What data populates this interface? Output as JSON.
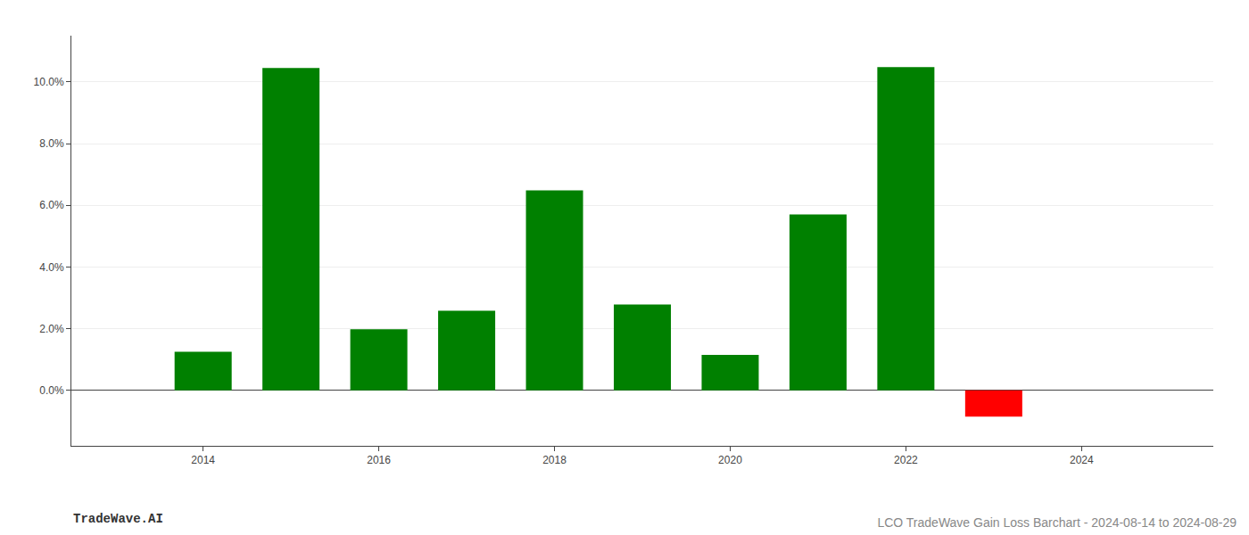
{
  "chart_data": {
    "type": "bar",
    "title": "LCO TradeWave Gain Loss Barchart - 2024-08-14 to 2024-08-29",
    "annotations": [
      "TradeWave.AI"
    ],
    "x": [
      2014,
      2015,
      2016,
      2017,
      2018,
      2019,
      2020,
      2021,
      2022,
      2023
    ],
    "values": [
      0.0125,
      0.1045,
      0.0198,
      0.0258,
      0.0648,
      0.0278,
      0.0115,
      0.057,
      0.1048,
      -0.0085
    ],
    "colors": [
      "#008000",
      "#008000",
      "#008000",
      "#008000",
      "#008000",
      "#008000",
      "#008000",
      "#008000",
      "#008000",
      "#ff0000"
    ],
    "xlim": [
      2012.5,
      2025.5
    ],
    "xticks": [
      2014,
      2016,
      2018,
      2020,
      2022,
      2024
    ],
    "ylim": [
      -0.018,
      0.115
    ],
    "yticks": [
      {
        "value": 0.0,
        "label": "0.0%"
      },
      {
        "value": 0.02,
        "label": "2.0%"
      },
      {
        "value": 0.04,
        "label": "4.0%"
      },
      {
        "value": 0.06,
        "label": "6.0%"
      },
      {
        "value": 0.08,
        "label": "8.0%"
      },
      {
        "value": 0.1,
        "label": "10.0%"
      }
    ],
    "grid": true
  }
}
